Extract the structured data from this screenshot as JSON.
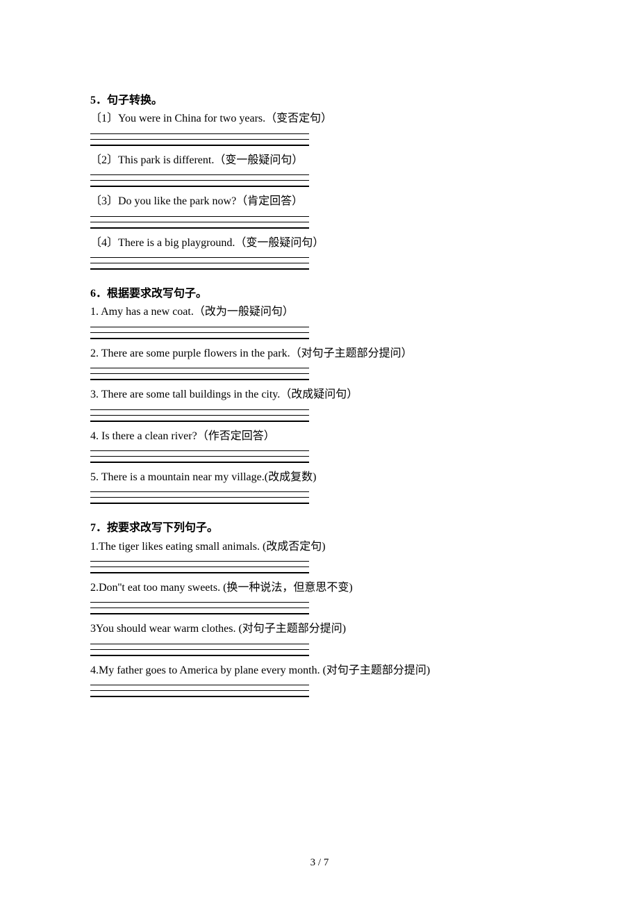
{
  "section5": {
    "title": "5．句子转换。",
    "q1": "〔1〕You were in China for two years.（变否定句）",
    "q2": "〔2〕This park is different.（变一般疑问句）",
    "q3": "〔3〕Do you like the park now?（肯定回答）",
    "q4": "〔4〕There is a big playground.（变一般疑问句）"
  },
  "section6": {
    "title": "6．根据要求改写句子。",
    "q1": "1. Amy has a new coat.（改为一般疑问句）",
    "q2": "2. There are some purple flowers in the park.（对句子主题部分提问）",
    "q3": "3. There are some tall buildings in the city.（改成疑问句）",
    "q4": "4. Is there a clean river?（作否定回答）",
    "q5": "5. There is a mountain near my village.(改成复数)"
  },
  "section7": {
    "title": "7．按要求改写下列句子。",
    "q1": "1.The tiger likes eating small animals. (改成否定句)",
    "q2": "2.Don''t eat too many sweets. (换一种说法，但意思不变)",
    "q3": "3You should wear warm clothes. (对句子主题部分提问)",
    "q4": "4.My father goes to America by plane every month. (对句子主题部分提问)"
  },
  "page_number": "3 / 7"
}
